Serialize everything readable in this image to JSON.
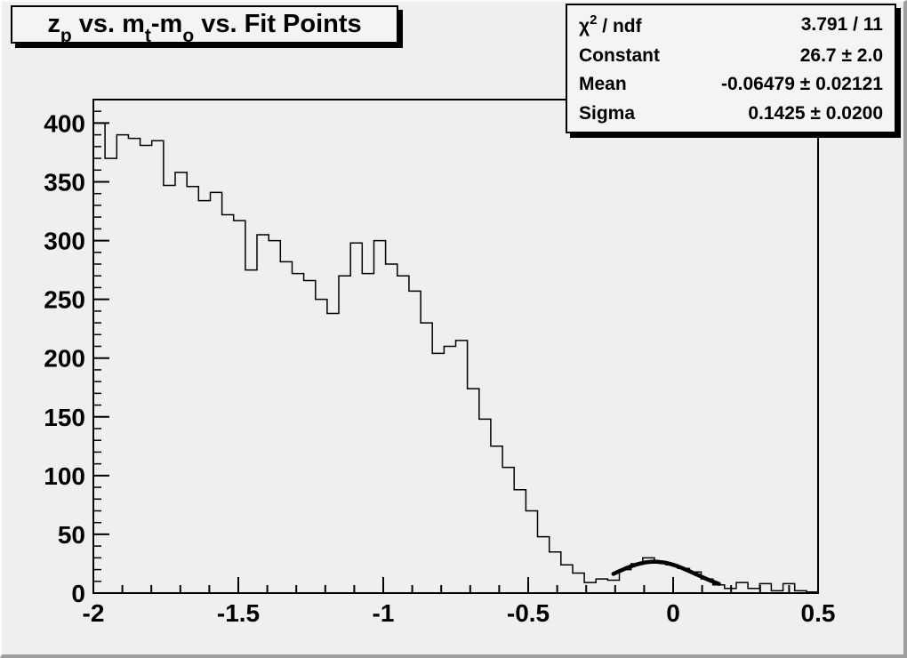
{
  "canvas": {
    "background": "#efefef",
    "border_dark": "#9e9e9e",
    "border_light": "#fbfbfb",
    "pave_background": "#f4f4f4",
    "line_color": "#000000"
  },
  "title_box": {
    "plain_text": "z_p vs. m_t-m_o vs. Fit Points",
    "segments": [
      {
        "t": "z"
      },
      {
        "sub": "p"
      },
      {
        "t": " vs. m"
      },
      {
        "sub": "t"
      },
      {
        "t": "-m"
      },
      {
        "sub": "o"
      },
      {
        "t": " vs. Fit Points"
      }
    ]
  },
  "stats_box": {
    "rows": [
      {
        "label_parts": [
          {
            "t": "χ"
          },
          {
            "sup": "2"
          },
          {
            "t": " / ndf"
          }
        ],
        "value": "3.791 / 11"
      },
      {
        "label_parts": [
          {
            "t": "Constant"
          }
        ],
        "value": "26.7 ± 2.0"
      },
      {
        "label_parts": [
          {
            "t": "Mean"
          }
        ],
        "value": "-0.06479 ± 0.02121"
      },
      {
        "label_parts": [
          {
            "t": "Sigma"
          }
        ],
        "value": "0.1425 ± 0.0200"
      }
    ]
  },
  "chart_data": {
    "type": "bar",
    "subtype": "histogram-step-outline",
    "title": "z_p vs. m_t-m_o vs. Fit Points",
    "xlabel": "",
    "ylabel": "",
    "x_range": [
      -2.0,
      0.5
    ],
    "y_range": [
      0,
      420
    ],
    "grid": false,
    "legend_position": "none",
    "bin_start": -2.0,
    "bin_width": 0.0403226,
    "n_bins": 62,
    "values": [
      400,
      370,
      390,
      387,
      381,
      385,
      347,
      358,
      346,
      334,
      341,
      322,
      317,
      275,
      305,
      300,
      282,
      272,
      266,
      250,
      238,
      270,
      298,
      272,
      300,
      280,
      270,
      257,
      230,
      204,
      210,
      215,
      174,
      148,
      125,
      107,
      88,
      70,
      48,
      35,
      24,
      17,
      9,
      12,
      11,
      20,
      25,
      30,
      26,
      24,
      21,
      18,
      12,
      7,
      4,
      9,
      4,
      8,
      2,
      8,
      2,
      1
    ],
    "x_ticks": {
      "major_values": [
        -2,
        -1.5,
        -1,
        -0.5,
        0,
        0.5
      ],
      "major_labels": [
        "-2",
        "-1.5",
        "-1",
        "-0.5",
        "0",
        "0.5"
      ],
      "minor_step": 0.1
    },
    "y_ticks": {
      "major_values": [
        0,
        50,
        100,
        150,
        200,
        250,
        300,
        350,
        400
      ],
      "major_labels": [
        "0",
        "50",
        "100",
        "150",
        "200",
        "250",
        "300",
        "350",
        "400"
      ],
      "minor_step": 10
    },
    "fit": {
      "model": "gaussian",
      "constant": 26.7,
      "mean": -0.06479,
      "sigma": 0.1425,
      "chi2": 3.791,
      "ndf": 11,
      "draw_range": [
        -0.206,
        0.158
      ]
    }
  }
}
